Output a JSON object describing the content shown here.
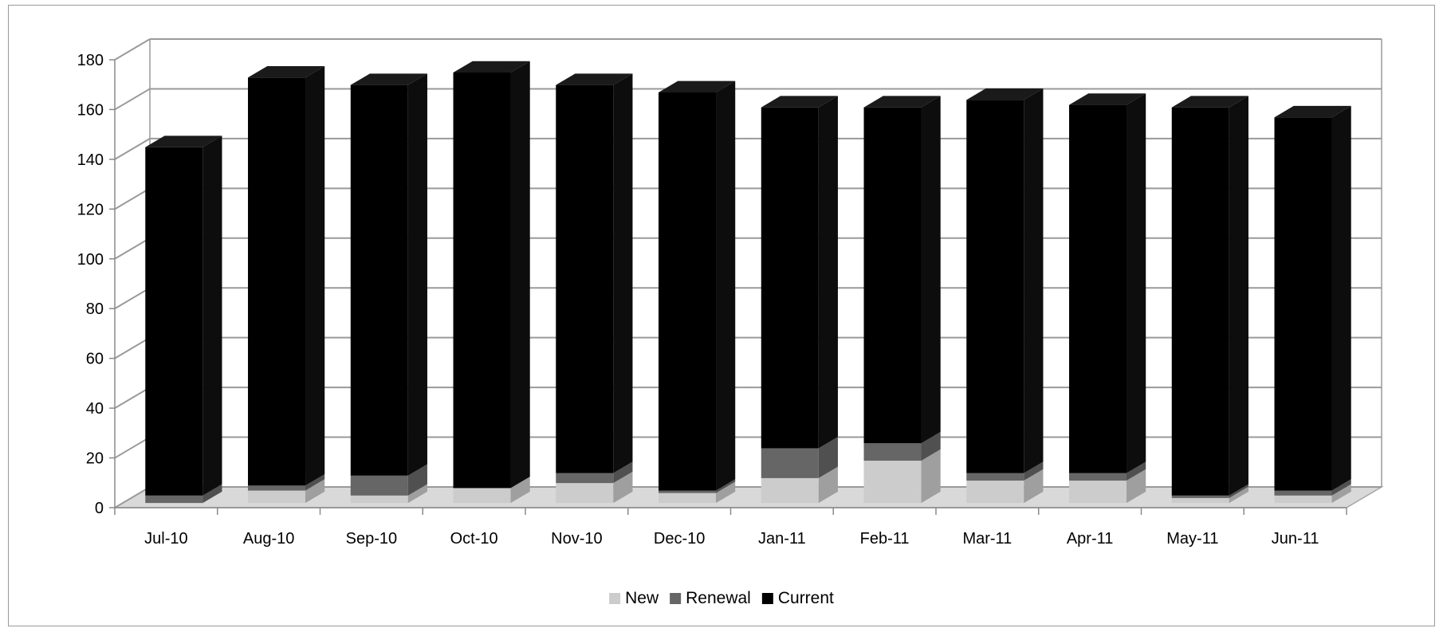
{
  "chart_data": {
    "type": "bar",
    "stacked": true,
    "three_d": true,
    "categories": [
      "Jul-10",
      "Aug-10",
      "Sep-10",
      "Oct-10",
      "Nov-10",
      "Dec-10",
      "Jan-11",
      "Feb-11",
      "Mar-11",
      "Apr-11",
      "May-11",
      "Jun-11"
    ],
    "series": [
      {
        "name": "New",
        "color": "#cccccc",
        "values": [
          0,
          5,
          3,
          6,
          8,
          4,
          10,
          17,
          9,
          9,
          2,
          3
        ]
      },
      {
        "name": "Renewal",
        "color": "#666666",
        "values": [
          3,
          2,
          8,
          0,
          4,
          1,
          12,
          7,
          3,
          3,
          1,
          2
        ]
      },
      {
        "name": "Current",
        "color": "#000000",
        "values": [
          140,
          164,
          157,
          167,
          156,
          160,
          137,
          135,
          150,
          148,
          156,
          150
        ]
      }
    ],
    "ylim": [
      0,
      180
    ],
    "yticks": [
      0,
      20,
      40,
      60,
      80,
      100,
      120,
      140,
      160,
      180
    ],
    "grid": true,
    "legend_position": "bottom"
  }
}
